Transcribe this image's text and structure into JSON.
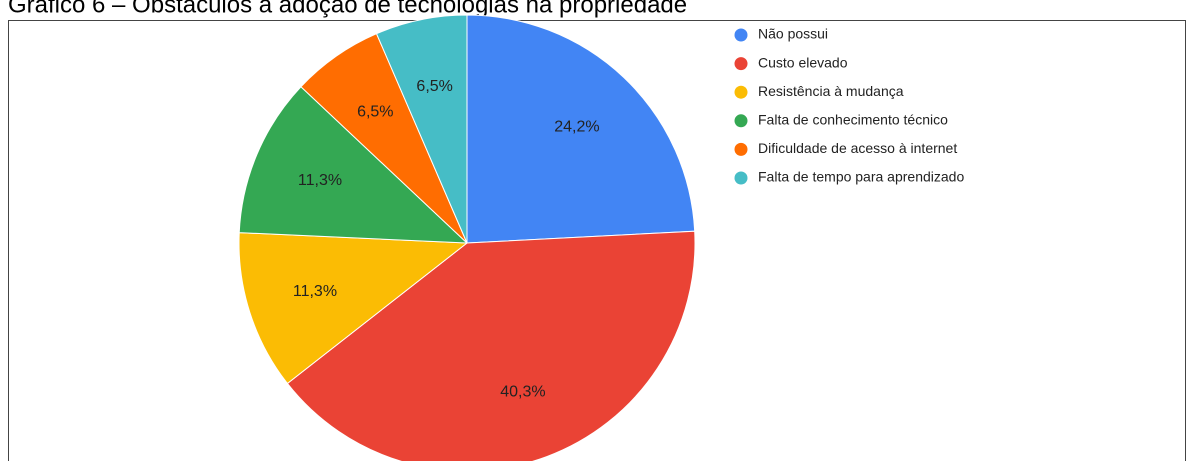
{
  "chart_data": {
    "type": "pie",
    "title": "Gráfico 6 – Obstáculos à adoção de tecnologias na propriedade",
    "categories": [
      "Não possui",
      "Custo elevado",
      "Resistência à mudança",
      "Falta de conhecimento técnico",
      "Dificuldade de acesso à internet",
      "Falta de tempo para aprendizado"
    ],
    "values": [
      24.2,
      40.3,
      11.3,
      11.3,
      6.5,
      6.5
    ],
    "value_labels": [
      "24,2%",
      "40,3%",
      "11,3%",
      "11,3%",
      "6,5%",
      "6,5%"
    ],
    "colors": [
      "#4285f4",
      "#ea4335",
      "#fbbc04",
      "#34a853",
      "#ff6d01",
      "#46bdc6"
    ],
    "legend": "right"
  }
}
